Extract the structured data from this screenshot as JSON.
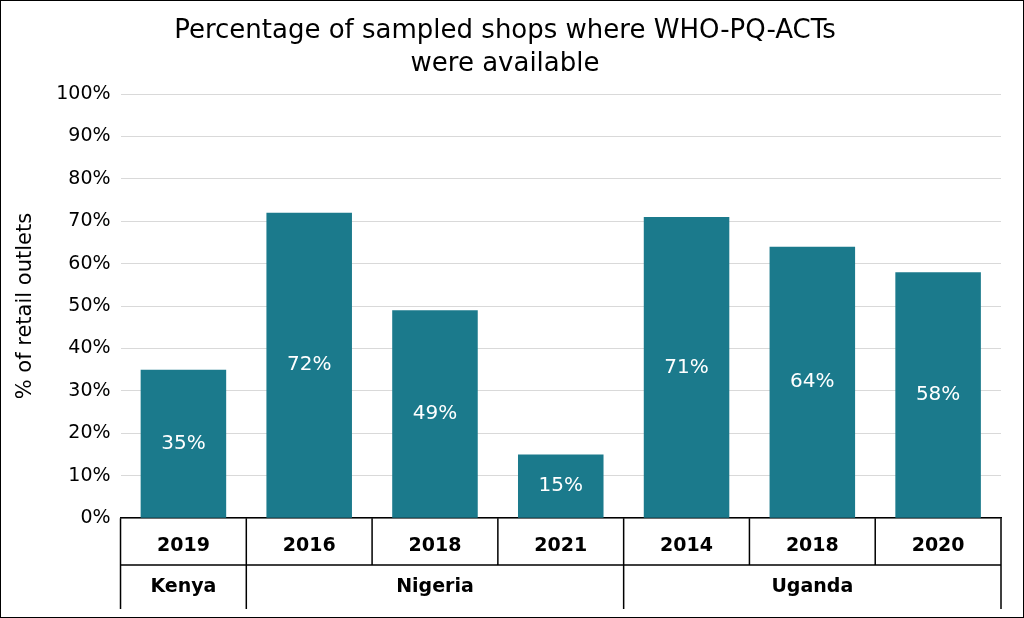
{
  "chart_data": {
    "type": "bar",
    "title": [
      "Percentage of sampled shops where WHO-PQ-ACTs",
      "were available"
    ],
    "y_label": "% of retail outlets",
    "categories": [
      "2019",
      "2016",
      "2018",
      "2021",
      "2014",
      "2018",
      "2020"
    ],
    "category_groups": [
      "Kenya",
      "Nigeria",
      "Nigeria",
      "Nigeria",
      "Uganda",
      "Uganda",
      "Uganda"
    ],
    "values": [
      35,
      72,
      49,
      15,
      71,
      64,
      58
    ],
    "value_labels": [
      "35%",
      "72%",
      "49%",
      "15%",
      "71%",
      "64%",
      "58%"
    ],
    "color": "#1b7a8c",
    "ylim": [
      0,
      100
    ],
    "yticks": [
      {
        "value": 0,
        "label": "0%"
      },
      {
        "value": 10,
        "label": "10%"
      },
      {
        "value": 20,
        "label": "20%"
      },
      {
        "value": 30,
        "label": "30%"
      },
      {
        "value": 40,
        "label": "40%"
      },
      {
        "value": 50,
        "label": "50%"
      },
      {
        "value": 60,
        "label": "60%"
      },
      {
        "value": 70,
        "label": "70%"
      },
      {
        "value": 80,
        "label": "80%"
      },
      {
        "value": 90,
        "label": "90%"
      },
      {
        "value": 100,
        "label": "100%"
      }
    ],
    "grid": true,
    "data_labels": true
  }
}
